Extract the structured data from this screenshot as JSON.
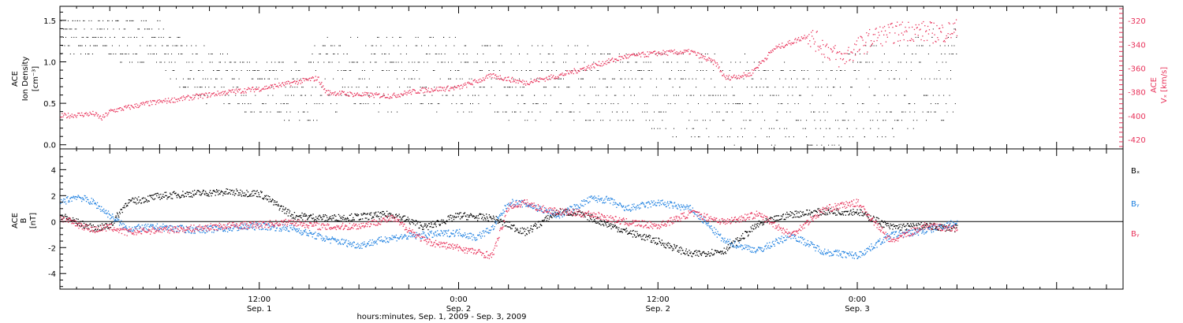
{
  "colors": {
    "black": "#000000",
    "red": "#e8325a",
    "blue": "#1c7fe0"
  },
  "xaxis": {
    "range_hours": [
      0,
      64
    ],
    "major_ticks": [
      {
        "hour": 12,
        "time": "12:00",
        "day": "Sep. 1"
      },
      {
        "hour": 24,
        "time": "0:00",
        "day": "Sep. 2"
      },
      {
        "hour": 36,
        "time": "12:00",
        "day": "Sep. 2"
      },
      {
        "hour": 48,
        "time": "0:00",
        "day": "Sep. 3"
      }
    ],
    "title": "hours:minutes, Sep.  1, 2009 - Sep.  3, 2009"
  },
  "chart_data": [
    {
      "type": "scatter",
      "panel": "top",
      "ylabel_lines": [
        "ACE",
        "Ion Density",
        "[cm⁻³]"
      ],
      "ylim": [
        -0.05,
        1.67
      ],
      "yticks": [
        0.0,
        0.5,
        1.0,
        1.5
      ],
      "ytick_labels": [
        "0.0",
        "0.5",
        "1.0",
        "1.5"
      ],
      "right_axis": {
        "ylabel_lines": [
          "ACE",
          "Vₓ [km/s]"
        ],
        "ylim": [
          -428,
          -308
        ],
        "yticks": [
          -420,
          -400,
          -380,
          -360,
          -340,
          -320
        ],
        "ytick_labels": [
          "-420",
          "-400",
          "-380",
          "-360",
          "-340",
          "-320"
        ]
      },
      "series": [
        {
          "color": "black",
          "axis": "left",
          "x_hours": [
            0,
            3,
            6,
            8,
            10,
            12,
            14,
            16,
            18,
            20,
            22,
            24,
            26,
            28,
            30,
            32,
            34,
            36,
            38,
            40,
            42,
            44,
            46,
            48,
            50,
            52,
            54
          ],
          "values": [
            1.3,
            1.3,
            1.2,
            0.9,
            0.75,
            0.7,
            0.65,
            0.8,
            0.9,
            0.85,
            0.9,
            0.85,
            0.8,
            0.75,
            0.8,
            0.75,
            0.7,
            0.65,
            0.6,
            0.55,
            0.55,
            0.5,
            0.45,
            0.6,
            0.7,
            0.8,
            0.85
          ],
          "spread": [
            0.25,
            0.25,
            0.3,
            0.3,
            0.35,
            0.35,
            0.35,
            0.5,
            0.5,
            0.45,
            0.45,
            0.45,
            0.45,
            0.45,
            0.45,
            0.45,
            0.45,
            0.5,
            0.5,
            0.55,
            0.5,
            0.5,
            0.5,
            0.55,
            0.6,
            0.6,
            0.55
          ]
        },
        {
          "color": "red",
          "axis": "right",
          "x_hours": [
            0,
            2,
            2.5,
            3,
            5,
            8,
            10,
            12,
            14,
            15.5,
            16,
            18,
            20,
            21,
            22,
            24,
            26,
            28,
            30,
            32,
            34,
            36,
            38,
            39.5,
            40,
            41.5,
            43,
            44,
            45,
            47,
            49,
            51,
            53,
            54
          ],
          "values": [
            -400,
            -398,
            -402,
            -396,
            -390,
            -384,
            -380,
            -377,
            -372,
            -368,
            -380,
            -382,
            -383,
            -380,
            -378,
            -376,
            -366,
            -372,
            -366,
            -358,
            -350,
            -347,
            -346,
            -356,
            -368,
            -365,
            -343,
            -338,
            -332,
            -352,
            -333,
            -328,
            -330,
            -327
          ]
        }
      ]
    },
    {
      "type": "scatter",
      "panel": "bottom",
      "ylabel_lines": [
        "ACE",
        "B",
        "[nT]"
      ],
      "ylim": [
        -5.2,
        5.6
      ],
      "yticks": [
        -4,
        -2,
        0,
        2,
        4
      ],
      "ytick_labels": [
        "-4",
        "-2",
        "0",
        "2",
        "4"
      ],
      "legend_position": "right",
      "series": [
        {
          "name": "Bₓ",
          "color": "black",
          "x_hours": [
            0,
            2,
            3,
            4,
            6,
            8,
            10,
            12,
            14,
            16,
            18,
            20,
            22,
            24,
            26,
            28,
            30,
            31,
            32,
            34,
            36,
            38,
            40,
            42,
            44,
            46,
            48,
            50,
            52,
            54
          ],
          "values": [
            0.5,
            -0.5,
            -0.3,
            1.5,
            2.0,
            2.2,
            2.3,
            2.2,
            0.5,
            0.3,
            0.4,
            0.6,
            -0.4,
            0.5,
            0.3,
            -0.8,
            0.8,
            0.7,
            0.3,
            -0.7,
            -1.5,
            -2.5,
            -2.2,
            -0.2,
            0.6,
            0.8,
            0.8,
            -0.4,
            -0.3,
            -0.5
          ]
        },
        {
          "name": "Bᵧ",
          "color": "blue",
          "x_hours": [
            0,
            1,
            2,
            3,
            4,
            6,
            8,
            10,
            12,
            14,
            16,
            18,
            20,
            22,
            24,
            25,
            26,
            27,
            28,
            30,
            32,
            33,
            34,
            36,
            38,
            40,
            42,
            44,
            46,
            48,
            50,
            52,
            54
          ],
          "values": [
            1.5,
            2.0,
            1.5,
            0.5,
            -0.5,
            -0.4,
            -0.6,
            -0.5,
            -0.3,
            -0.5,
            -1.3,
            -1.8,
            -1.2,
            -1.0,
            -0.8,
            -1.2,
            -0.5,
            1.5,
            1.4,
            0.5,
            1.8,
            1.7,
            1.0,
            1.5,
            1.0,
            -1.5,
            -2.2,
            -1.0,
            -2.3,
            -2.6,
            -1.0,
            -0.7,
            0.0
          ]
        },
        {
          "name": "Bᵧ",
          "color": "red",
          "x_hours": [
            0,
            2,
            3,
            4,
            6,
            8,
            10,
            12,
            14,
            16,
            18,
            20,
            22,
            24,
            25,
            26,
            27,
            28,
            29,
            30,
            32,
            34,
            36,
            38,
            40,
            42,
            44,
            46,
            48,
            50,
            52,
            54
          ],
          "values": [
            0.3,
            -0.6,
            -0.4,
            -0.8,
            -0.6,
            -0.5,
            -0.3,
            -0.2,
            0.0,
            -0.4,
            -0.3,
            0.3,
            -1.5,
            -2.0,
            -2.3,
            -2.6,
            1.2,
            1.5,
            1.0,
            0.8,
            0.6,
            0.0,
            -0.3,
            0.7,
            0.0,
            0.6,
            -1.0,
            1.0,
            1.5,
            -1.5,
            -0.3,
            -0.5
          ]
        }
      ]
    }
  ]
}
